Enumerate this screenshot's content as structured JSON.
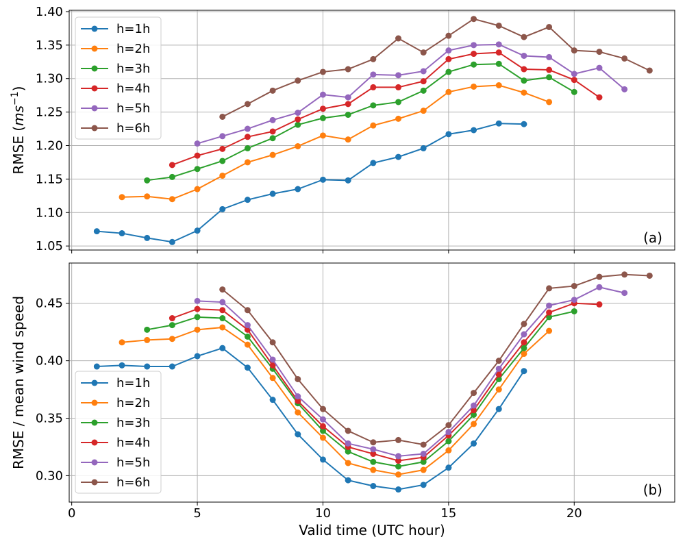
{
  "chart_data": [
    {
      "type": "line",
      "panel_label": "(a)",
      "ylabel": "RMSE (",
      "ylabel_unit": "ms",
      "ylabel_exp": "−1",
      "ylabel_close": ")",
      "xlabel": "",
      "xlim": [
        -0.1,
        24
      ],
      "ylim": [
        1.044,
        1.402
      ],
      "xticks": [
        0,
        5,
        10,
        15,
        20
      ],
      "xtick_labels": [],
      "yticks": [
        1.05,
        1.1,
        1.15,
        1.2,
        1.25,
        1.3,
        1.35,
        1.4
      ],
      "ytick_labels": [
        "1.05",
        "1.10",
        "1.15",
        "1.20",
        "1.25",
        "1.30",
        "1.35",
        "1.40"
      ],
      "grid": true,
      "legend_position": "upper-left",
      "series": [
        {
          "name": "h=1h",
          "color": "#1f77b4",
          "x": [
            1,
            2,
            3,
            4,
            5,
            6,
            7,
            8,
            9,
            10,
            11,
            12,
            13,
            14,
            15,
            16,
            17,
            18
          ],
          "values": [
            1.072,
            1.069,
            1.062,
            1.056,
            1.073,
            1.105,
            1.119,
            1.128,
            1.135,
            1.149,
            1.148,
            1.174,
            1.183,
            1.196,
            1.217,
            1.223,
            1.233,
            1.232
          ]
        },
        {
          "name": "h=2h",
          "color": "#ff7f0e",
          "x": [
            2,
            3,
            4,
            5,
            6,
            7,
            8,
            9,
            10,
            11,
            12,
            13,
            14,
            15,
            16,
            17,
            18,
            19
          ],
          "values": [
            1.123,
            1.124,
            1.12,
            1.135,
            1.155,
            1.175,
            1.186,
            1.199,
            1.215,
            1.209,
            1.23,
            1.24,
            1.252,
            1.28,
            1.288,
            1.29,
            1.279,
            1.265
          ]
        },
        {
          "name": "h=3h",
          "color": "#2ca02c",
          "x": [
            3,
            4,
            5,
            6,
            7,
            8,
            9,
            10,
            11,
            12,
            13,
            14,
            15,
            16,
            17,
            18,
            19,
            20
          ],
          "values": [
            1.148,
            1.153,
            1.165,
            1.177,
            1.196,
            1.211,
            1.231,
            1.241,
            1.246,
            1.26,
            1.265,
            1.282,
            1.31,
            1.321,
            1.322,
            1.297,
            1.302,
            1.28
          ]
        },
        {
          "name": "h=4h",
          "color": "#d62728",
          "x": [
            4,
            5,
            6,
            7,
            8,
            9,
            10,
            11,
            12,
            13,
            14,
            15,
            16,
            17,
            18,
            19,
            20,
            21
          ],
          "values": [
            1.171,
            1.185,
            1.195,
            1.213,
            1.221,
            1.239,
            1.255,
            1.262,
            1.287,
            1.287,
            1.296,
            1.329,
            1.337,
            1.339,
            1.314,
            1.313,
            1.298,
            1.272
          ]
        },
        {
          "name": "h=5h",
          "color": "#9467bd",
          "x": [
            5,
            6,
            7,
            8,
            9,
            10,
            11,
            12,
            13,
            14,
            15,
            16,
            17,
            18,
            19,
            20,
            21,
            22
          ],
          "values": [
            1.203,
            1.214,
            1.225,
            1.238,
            1.249,
            1.276,
            1.272,
            1.306,
            1.305,
            1.311,
            1.342,
            1.35,
            1.351,
            1.334,
            1.332,
            1.307,
            1.316,
            1.284
          ]
        },
        {
          "name": "h=6h",
          "color": "#8c564b",
          "x": [
            6,
            7,
            8,
            9,
            10,
            11,
            12,
            13,
            14,
            15,
            16,
            17,
            18,
            19,
            20,
            21,
            22,
            23
          ],
          "values": [
            1.243,
            1.262,
            1.282,
            1.297,
            1.31,
            1.314,
            1.329,
            1.36,
            1.339,
            1.364,
            1.389,
            1.379,
            1.362,
            1.377,
            1.342,
            1.34,
            1.33,
            1.312
          ]
        }
      ]
    },
    {
      "type": "line",
      "panel_label": "(b)",
      "ylabel": "RMSE / mean wind speed",
      "xlabel": "Valid time (UTC hour)",
      "xlim": [
        -0.1,
        24
      ],
      "ylim": [
        0.277,
        0.485
      ],
      "xticks": [
        0,
        5,
        10,
        15,
        20
      ],
      "xtick_labels": [
        "0",
        "5",
        "10",
        "15",
        "20"
      ],
      "yticks": [
        0.3,
        0.35,
        0.4,
        0.45
      ],
      "ytick_labels": [
        "0.30",
        "0.35",
        "0.40",
        "0.45"
      ],
      "grid": true,
      "legend_position": "lower-left",
      "series": [
        {
          "name": "h=1h",
          "color": "#1f77b4",
          "x": [
            1,
            2,
            3,
            4,
            5,
            6,
            7,
            8,
            9,
            10,
            11,
            12,
            13,
            14,
            15,
            16,
            17,
            18
          ],
          "values": [
            0.395,
            0.396,
            0.395,
            0.395,
            0.404,
            0.411,
            0.394,
            0.366,
            0.336,
            0.314,
            0.296,
            0.291,
            0.288,
            0.292,
            0.307,
            0.328,
            0.358,
            0.391
          ]
        },
        {
          "name": "h=2h",
          "color": "#ff7f0e",
          "x": [
            2,
            3,
            4,
            5,
            6,
            7,
            8,
            9,
            10,
            11,
            12,
            13,
            14,
            15,
            16,
            17,
            18,
            19
          ],
          "values": [
            0.416,
            0.418,
            0.419,
            0.427,
            0.429,
            0.414,
            0.385,
            0.355,
            0.333,
            0.311,
            0.305,
            0.301,
            0.305,
            0.322,
            0.345,
            0.375,
            0.406,
            0.426
          ]
        },
        {
          "name": "h=3h",
          "color": "#2ca02c",
          "x": [
            3,
            4,
            5,
            6,
            7,
            8,
            9,
            10,
            11,
            12,
            13,
            14,
            15,
            16,
            17,
            18,
            19,
            20
          ],
          "values": [
            0.427,
            0.431,
            0.438,
            0.437,
            0.421,
            0.393,
            0.363,
            0.339,
            0.321,
            0.312,
            0.308,
            0.312,
            0.33,
            0.353,
            0.384,
            0.411,
            0.438,
            0.443
          ]
        },
        {
          "name": "h=4h",
          "color": "#d62728",
          "x": [
            4,
            5,
            6,
            7,
            8,
            9,
            10,
            11,
            12,
            13,
            14,
            15,
            16,
            17,
            18,
            19,
            20,
            21
          ],
          "values": [
            0.437,
            0.445,
            0.444,
            0.427,
            0.396,
            0.365,
            0.343,
            0.325,
            0.319,
            0.313,
            0.316,
            0.335,
            0.357,
            0.388,
            0.416,
            0.442,
            0.45,
            0.449
          ]
        },
        {
          "name": "h=5h",
          "color": "#9467bd",
          "x": [
            5,
            6,
            7,
            8,
            9,
            10,
            11,
            12,
            13,
            14,
            15,
            16,
            17,
            18,
            19,
            20,
            21,
            22
          ],
          "values": [
            0.452,
            0.451,
            0.431,
            0.401,
            0.369,
            0.349,
            0.328,
            0.323,
            0.317,
            0.319,
            0.338,
            0.361,
            0.393,
            0.423,
            0.448,
            0.453,
            0.464,
            0.459
          ]
        },
        {
          "name": "h=6h",
          "color": "#8c564b",
          "x": [
            6,
            7,
            8,
            9,
            10,
            11,
            12,
            13,
            14,
            15,
            16,
            17,
            18,
            19,
            20,
            21,
            22,
            23
          ],
          "values": [
            0.462,
            0.444,
            0.416,
            0.384,
            0.358,
            0.339,
            0.329,
            0.331,
            0.327,
            0.344,
            0.372,
            0.4,
            0.432,
            0.463,
            0.465,
            0.473,
            0.475,
            0.474
          ]
        }
      ]
    }
  ]
}
